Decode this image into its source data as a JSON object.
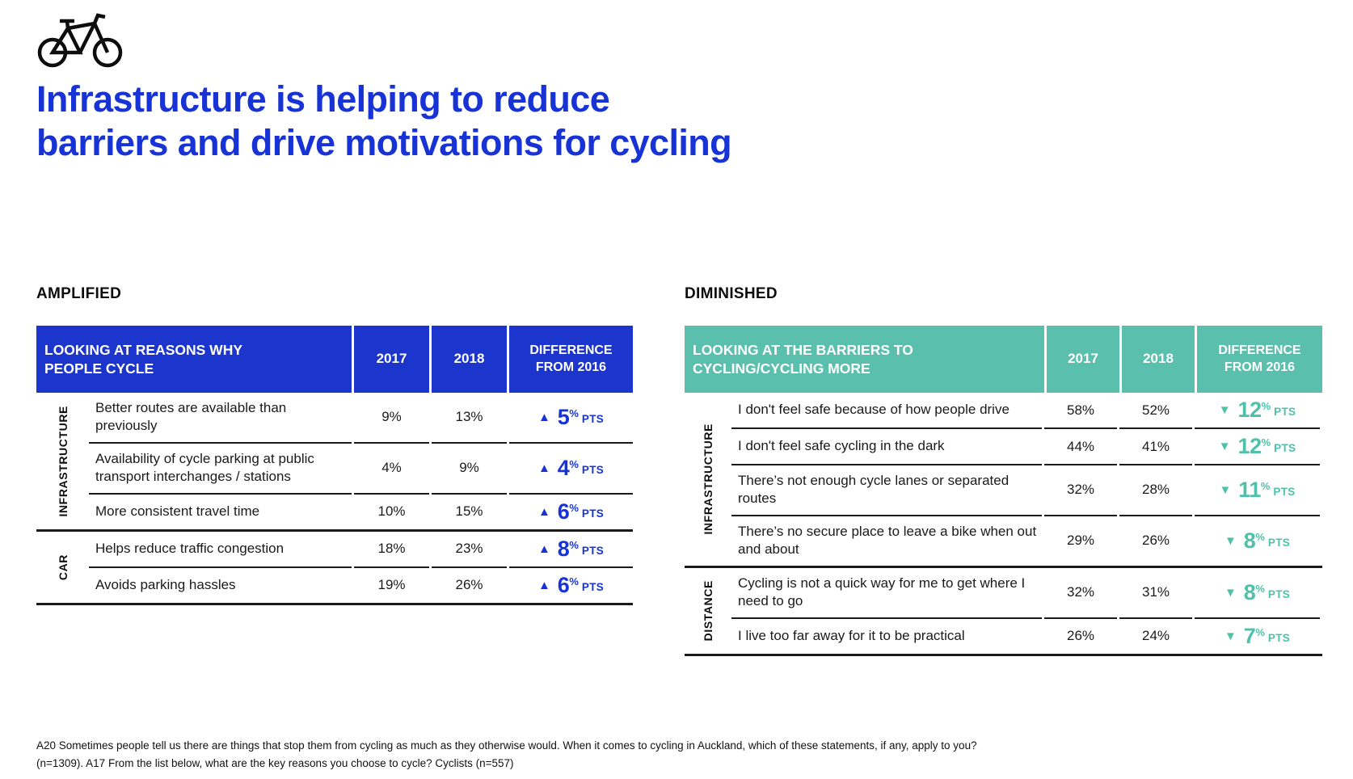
{
  "header": {
    "title_line1": "Infrastructure is helping to reduce",
    "title_line2": "barriers and drive motivations for cycling"
  },
  "icons": {
    "bicycle": "bicycle-icon",
    "arrow_up_glyph": "▲",
    "arrow_down_glyph": "▼"
  },
  "colors": {
    "brand_blue": "#1733d6",
    "header_blue": "#1c35cd",
    "header_teal": "#5bbfad",
    "diff_teal": "#4fc1ab",
    "text": "#1a1a1a"
  },
  "tables": [
    {
      "id": "amplified",
      "section_label": "AMPLIFIED",
      "accent": "#1c35cd",
      "diff_color": "#1733d6",
      "direction": "up",
      "header": {
        "title_lines": [
          "LOOKING AT REASONS WHY",
          "PEOPLE CYCLE"
        ],
        "col_2017": "2017",
        "col_2018": "2018",
        "diff_lines": [
          "DIFFERENCE",
          "FROM 2016"
        ]
      },
      "pts_label": "PTS",
      "percent_sign": "%",
      "groups": [
        {
          "label": "INFRASTRUCTURE",
          "rows": [
            {
              "text": "Better routes are available than previously",
              "y2017": "9%",
              "y2018": "13%",
              "diff": "5"
            },
            {
              "text": "Availability of cycle parking at public transport interchanges / stations",
              "y2017": "4%",
              "y2018": "9%",
              "diff": "4"
            },
            {
              "text": "More consistent travel time",
              "y2017": "10%",
              "y2018": "15%",
              "diff": "6"
            }
          ]
        },
        {
          "label": "CAR",
          "rows": [
            {
              "text": "Helps reduce traffic congestion",
              "y2017": "18%",
              "y2018": "23%",
              "diff": "8"
            },
            {
              "text": "Avoids parking hassles",
              "y2017": "19%",
              "y2018": "26%",
              "diff": "6"
            }
          ]
        }
      ]
    },
    {
      "id": "diminished",
      "section_label": "DIMINISHED",
      "accent": "#5bbfad",
      "diff_color": "#4fc1ab",
      "direction": "down",
      "header": {
        "title_lines": [
          "LOOKING AT THE BARRIERS TO",
          "CYCLING/CYCLING MORE"
        ],
        "col_2017": "2017",
        "col_2018": "2018",
        "diff_lines": [
          "DIFFERENCE",
          "FROM 2016"
        ]
      },
      "pts_label": "PTS",
      "percent_sign": "%",
      "groups": [
        {
          "label": "INFRASTRUCTURE",
          "rows": [
            {
              "text": "I don't feel safe because of how people drive",
              "y2017": "58%",
              "y2018": "52%",
              "diff": "12"
            },
            {
              "text": "I don't feel safe cycling in the dark",
              "y2017": "44%",
              "y2018": "41%",
              "diff": "12"
            },
            {
              "text": "There’s not enough cycle lanes or separated routes",
              "y2017": "32%",
              "y2018": "28%",
              "diff": "11"
            },
            {
              "text": "There’s no secure place to leave a bike when out and about",
              "y2017": "29%",
              "y2018": "26%",
              "diff": "8"
            }
          ]
        },
        {
          "label": "DISTANCE",
          "rows": [
            {
              "text": "Cycling is not a quick way for me to get where I need to go",
              "y2017": "32%",
              "y2018": "31%",
              "diff": "8"
            },
            {
              "text": "I live too far away for it to be practical",
              "y2017": "26%",
              "y2018": "24%",
              "diff": "7"
            }
          ]
        }
      ]
    }
  ],
  "footnote": {
    "lines": [
      "A20 Sometimes people tell us there are things that stop them from cycling as much as they otherwise would. When it comes to cycling in Auckland, which of these statements, if any, apply to you?",
      "(n=1309). A17 From the list below, what are the key reasons you choose to cycle? Cyclists (n=557)"
    ]
  }
}
